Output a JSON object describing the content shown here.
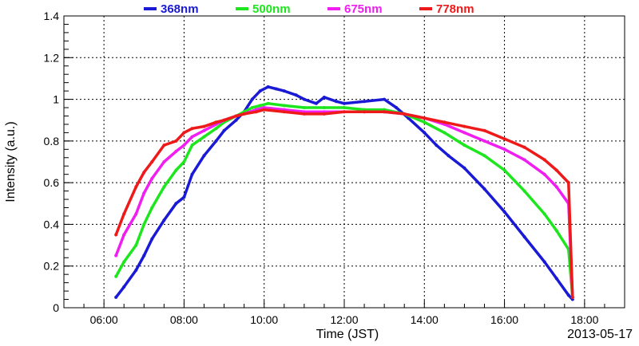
{
  "chart_data": {
    "type": "scatter",
    "xlabel": "Time (JST)",
    "ylabel": "Intensity (a.u.)",
    "date_label": "2013-05-17",
    "xlim_hours": [
      5.0,
      19.0
    ],
    "ylim": [
      0,
      1.4
    ],
    "grid": true,
    "legend_placement": "top",
    "x_ticks": [
      {
        "value": 6,
        "label": "06:00"
      },
      {
        "value": 8,
        "label": "08:00"
      },
      {
        "value": 10,
        "label": "10:00"
      },
      {
        "value": 12,
        "label": "12:00"
      },
      {
        "value": 14,
        "label": "14:00"
      },
      {
        "value": 16,
        "label": "16:00"
      },
      {
        "value": 18,
        "label": "18:00"
      }
    ],
    "y_ticks": [
      {
        "value": 0,
        "label": "0"
      },
      {
        "value": 0.2,
        "label": "0.2"
      },
      {
        "value": 0.4,
        "label": "0.4"
      },
      {
        "value": 0.6,
        "label": "0.6"
      },
      {
        "value": 0.8,
        "label": "0.8"
      },
      {
        "value": 1.0,
        "label": "1"
      },
      {
        "value": 1.2,
        "label": "1.2"
      },
      {
        "value": 1.4,
        "label": "1.4"
      }
    ],
    "series": [
      {
        "name": "368nm",
        "color": "#1a1ad6",
        "hours": [
          6.3,
          6.5,
          6.8,
          7.0,
          7.2,
          7.5,
          7.8,
          8.0,
          8.2,
          8.5,
          8.8,
          9.0,
          9.3,
          9.5,
          9.7,
          9.9,
          10.1,
          10.3,
          10.5,
          10.8,
          11.0,
          11.3,
          11.5,
          11.8,
          12.0,
          12.5,
          13.0,
          13.3,
          13.6,
          14.0,
          14.3,
          14.6,
          15.0,
          15.5,
          16.0,
          16.5,
          17.0,
          17.3,
          17.6,
          17.7
        ],
        "values": [
          0.05,
          0.1,
          0.18,
          0.25,
          0.33,
          0.42,
          0.5,
          0.53,
          0.64,
          0.73,
          0.8,
          0.85,
          0.9,
          0.94,
          1.0,
          1.04,
          1.06,
          1.05,
          1.04,
          1.02,
          1.0,
          0.98,
          1.01,
          0.99,
          0.98,
          0.99,
          1.0,
          0.96,
          0.91,
          0.84,
          0.78,
          0.73,
          0.67,
          0.57,
          0.46,
          0.34,
          0.22,
          0.14,
          0.06,
          0.04
        ]
      },
      {
        "name": "500nm",
        "color": "#1ee61e",
        "hours": [
          6.3,
          6.5,
          6.8,
          7.0,
          7.2,
          7.5,
          7.8,
          8.0,
          8.2,
          8.5,
          8.8,
          9.0,
          9.3,
          9.5,
          9.7,
          9.9,
          10.1,
          10.5,
          11.0,
          11.5,
          12.0,
          12.5,
          13.0,
          13.5,
          14.0,
          14.5,
          15.0,
          15.5,
          16.0,
          16.5,
          17.0,
          17.3,
          17.6,
          17.7
        ],
        "values": [
          0.15,
          0.22,
          0.3,
          0.4,
          0.48,
          0.58,
          0.66,
          0.7,
          0.78,
          0.82,
          0.86,
          0.89,
          0.92,
          0.94,
          0.96,
          0.97,
          0.98,
          0.97,
          0.96,
          0.96,
          0.96,
          0.95,
          0.95,
          0.93,
          0.89,
          0.84,
          0.78,
          0.73,
          0.66,
          0.56,
          0.45,
          0.37,
          0.28,
          0.05
        ]
      },
      {
        "name": "675nm",
        "color": "#f01ef0",
        "hours": [
          6.3,
          6.5,
          6.8,
          7.0,
          7.2,
          7.5,
          7.8,
          8.0,
          8.2,
          8.5,
          8.8,
          9.0,
          9.3,
          9.5,
          9.8,
          10.0,
          10.5,
          11.0,
          11.5,
          12.0,
          12.5,
          13.0,
          13.5,
          14.0,
          14.5,
          15.0,
          15.5,
          16.0,
          16.5,
          17.0,
          17.3,
          17.6,
          17.7
        ],
        "values": [
          0.25,
          0.35,
          0.45,
          0.55,
          0.62,
          0.7,
          0.75,
          0.78,
          0.82,
          0.85,
          0.88,
          0.9,
          0.92,
          0.93,
          0.95,
          0.96,
          0.95,
          0.94,
          0.94,
          0.94,
          0.94,
          0.94,
          0.93,
          0.91,
          0.88,
          0.84,
          0.8,
          0.76,
          0.71,
          0.64,
          0.58,
          0.5,
          0.05
        ]
      },
      {
        "name": "778nm",
        "color": "#ee1a1a",
        "hours": [
          6.3,
          6.5,
          6.8,
          7.0,
          7.2,
          7.5,
          7.8,
          8.0,
          8.2,
          8.5,
          8.8,
          9.0,
          9.3,
          9.5,
          9.8,
          10.0,
          10.5,
          11.0,
          11.5,
          12.0,
          12.5,
          13.0,
          13.5,
          14.0,
          14.5,
          15.0,
          15.5,
          16.0,
          16.5,
          17.0,
          17.3,
          17.6,
          17.7
        ],
        "values": [
          0.35,
          0.45,
          0.58,
          0.65,
          0.7,
          0.78,
          0.8,
          0.84,
          0.86,
          0.87,
          0.89,
          0.9,
          0.92,
          0.93,
          0.94,
          0.95,
          0.94,
          0.93,
          0.93,
          0.94,
          0.94,
          0.94,
          0.93,
          0.91,
          0.89,
          0.87,
          0.85,
          0.81,
          0.77,
          0.71,
          0.66,
          0.6,
          0.05
        ]
      }
    ]
  }
}
